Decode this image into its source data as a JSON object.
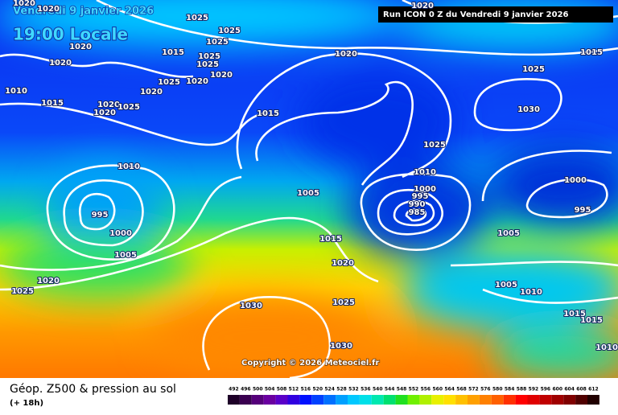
{
  "header": {
    "date": "Vendredi 9 janvier 2026",
    "time": "19:00 Locale",
    "run": "Run ICON 0 Z du Vendredi 9 janvier 2026"
  },
  "copyright": "Copyright © 2026 Meteociel.fr",
  "footer": {
    "title": "Géop. Z500 & pression au sol",
    "subtitle": "(+ 18h)"
  },
  "pressure_labels": [
    1020,
    1020,
    1025,
    1025,
    1025,
    1020,
    1015,
    1020,
    1015,
    1025,
    1020,
    1025,
    1020,
    1025,
    1020,
    1025,
    1020,
    1010,
    1015,
    1020,
    1025,
    1020,
    1030,
    1015,
    1025,
    1010,
    1010,
    1000,
    995,
    1000,
    1005,
    990,
    995,
    985,
    995,
    1000,
    1015,
    1005,
    1005,
    1020,
    1020,
    1005,
    1025,
    1010,
    1025,
    1030,
    1015,
    1015,
    1030,
    1010,
    1020
  ],
  "legend": {
    "labels": [
      492,
      496,
      500,
      504,
      508,
      512,
      516,
      520,
      524,
      528,
      532,
      536,
      540,
      544,
      548,
      552,
      556,
      560,
      564,
      568,
      572,
      576,
      580,
      584,
      588,
      592,
      596,
      600,
      604,
      608,
      612
    ],
    "colors": [
      "#1e0028",
      "#3a0050",
      "#55007a",
      "#6a00a0",
      "#5a00c8",
      "#3000e0",
      "#0010ff",
      "#0040ff",
      "#0070ff",
      "#00a0ff",
      "#00c8ff",
      "#00e0e8",
      "#00e8b0",
      "#00e070",
      "#20e020",
      "#70f000",
      "#b0f000",
      "#e8f000",
      "#ffe000",
      "#ffc000",
      "#ffa000",
      "#ff8000",
      "#ff6000",
      "#ff3000",
      "#ff0000",
      "#e00000",
      "#c00000",
      "#a00000",
      "#800000",
      "#500000",
      "#200000"
    ]
  }
}
